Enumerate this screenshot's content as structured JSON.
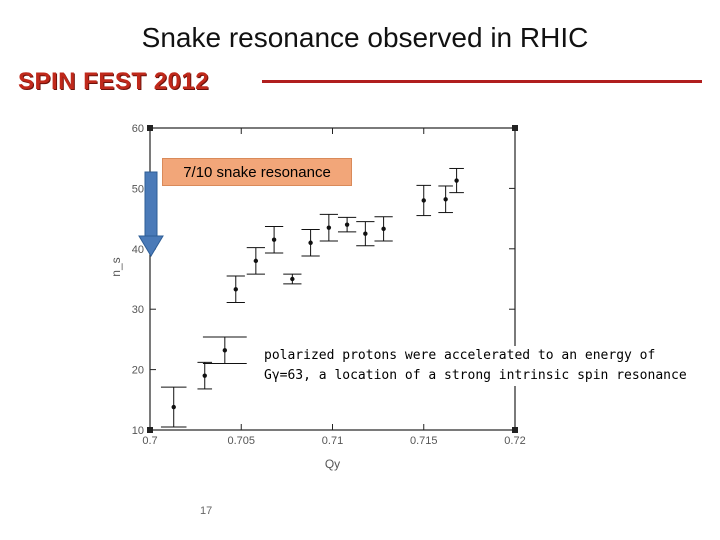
{
  "slide": {
    "title": "Snake resonance observed in RHIC",
    "brand": "SPIN FEST 2012",
    "page_number": "17",
    "brand_color": "#c0291b",
    "rule_color": "#b01e1e",
    "arrow_color": "#4a7ab8",
    "annotation_fill": "#f2a679"
  },
  "annotations": {
    "box_label": "7/10 snake resonance",
    "note_line1": "polarized protons were accelerated to an energy of",
    "note_line2": "Gγ=63, a location of a strong intrinsic spin resonance"
  },
  "chart_data": {
    "type": "scatter",
    "xlabel": "Qy",
    "ylabel": "n_s",
    "xlim": [
      0.7,
      0.72
    ],
    "ylim": [
      10,
      60
    ],
    "xticks": [
      0.7,
      0.705,
      0.71,
      0.715,
      0.72
    ],
    "xtick_labels": [
      "0.7",
      "0.705",
      "0.71",
      "0.715",
      "0.72"
    ],
    "yticks": [
      10,
      20,
      30,
      40,
      50,
      60
    ],
    "ytick_labels": [
      "10",
      "20",
      "30",
      "40",
      "50",
      "60"
    ],
    "grid": false,
    "points": [
      {
        "x": 0.7013,
        "y": 13.8,
        "yerr": 3.3,
        "xerr": 0.0007
      },
      {
        "x": 0.703,
        "y": 19.0,
        "yerr": 2.2,
        "xerr": 0.0004
      },
      {
        "x": 0.7041,
        "y": 23.2,
        "yerr": 2.2,
        "xerr": 0.0012
      },
      {
        "x": 0.7047,
        "y": 33.3,
        "yerr": 2.2,
        "xerr": 0.0005
      },
      {
        "x": 0.7058,
        "y": 38.0,
        "yerr": 2.2,
        "xerr": 0.0005
      },
      {
        "x": 0.7068,
        "y": 41.5,
        "yerr": 2.2,
        "xerr": 0.0005
      },
      {
        "x": 0.7078,
        "y": 35.0,
        "yerr": 0.8,
        "xerr": 0.0005
      },
      {
        "x": 0.7088,
        "y": 41.0,
        "yerr": 2.2,
        "xerr": 0.0005
      },
      {
        "x": 0.7098,
        "y": 43.5,
        "yerr": 2.2,
        "xerr": 0.0005
      },
      {
        "x": 0.7108,
        "y": 44.0,
        "yerr": 1.2,
        "xerr": 0.0005
      },
      {
        "x": 0.7118,
        "y": 42.5,
        "yerr": 2.0,
        "xerr": 0.0005
      },
      {
        "x": 0.7128,
        "y": 43.3,
        "yerr": 2.0,
        "xerr": 0.0005
      },
      {
        "x": 0.715,
        "y": 48.0,
        "yerr": 2.5,
        "xerr": 0.0004
      },
      {
        "x": 0.7162,
        "y": 48.2,
        "yerr": 2.2,
        "xerr": 0.0004
      },
      {
        "x": 0.7168,
        "y": 51.3,
        "yerr": 2.0,
        "xerr": 0.0004
      }
    ]
  }
}
